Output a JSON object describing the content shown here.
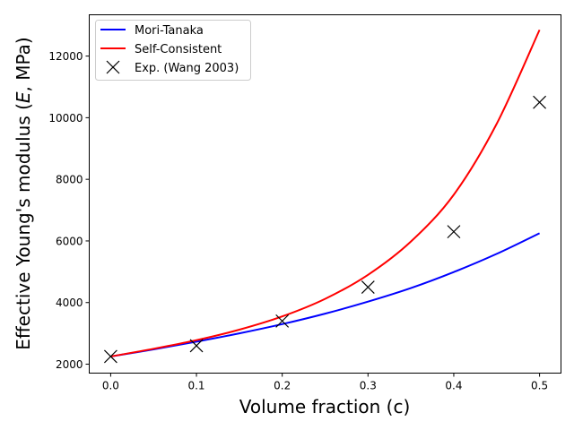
{
  "chart_data": {
    "type": "line",
    "title": "",
    "xlabel": "Volume fraction (c)",
    "ylabel_parts": [
      "Effective Young's modulus (",
      "E",
      ", MPa)"
    ],
    "xlim": [
      -0.025,
      0.525
    ],
    "ylim": [
      1710,
      13340
    ],
    "xticks": [
      0.0,
      0.1,
      0.2,
      0.3,
      0.4,
      0.5
    ],
    "xtick_labels": [
      "0.0",
      "0.1",
      "0.2",
      "0.3",
      "0.4",
      "0.5"
    ],
    "yticks": [
      2000,
      4000,
      6000,
      8000,
      10000,
      12000
    ],
    "ytick_labels": [
      "2000",
      "4000",
      "6000",
      "8000",
      "10000",
      "12000"
    ],
    "grid": false,
    "legend_position": "top-left",
    "series": [
      {
        "name": "Mori-Tanaka",
        "kind": "line",
        "color": "#0000ff",
        "x": [
          0,
          0.05,
          0.1,
          0.15,
          0.2,
          0.25,
          0.3,
          0.35,
          0.4,
          0.45,
          0.5
        ],
        "y": [
          2250,
          2480,
          2730,
          3000,
          3300,
          3640,
          4030,
          4470,
          4990,
          5580,
          6250
        ]
      },
      {
        "name": "Self-Consistent",
        "kind": "line",
        "color": "#ff0000",
        "x": [
          0,
          0.05,
          0.1,
          0.15,
          0.2,
          0.25,
          0.3,
          0.35,
          0.4,
          0.45,
          0.5
        ],
        "y": [
          2250,
          2500,
          2780,
          3120,
          3550,
          4120,
          4900,
          5980,
          7500,
          9800,
          12850
        ]
      },
      {
        "name": "Exp. (Wang 2003)",
        "kind": "scatter",
        "marker": "x",
        "color": "#000000",
        "x": [
          0.0,
          0.1,
          0.2,
          0.3,
          0.4,
          0.5
        ],
        "y": [
          2250,
          2600,
          3400,
          4500,
          6300,
          10500
        ]
      }
    ]
  }
}
